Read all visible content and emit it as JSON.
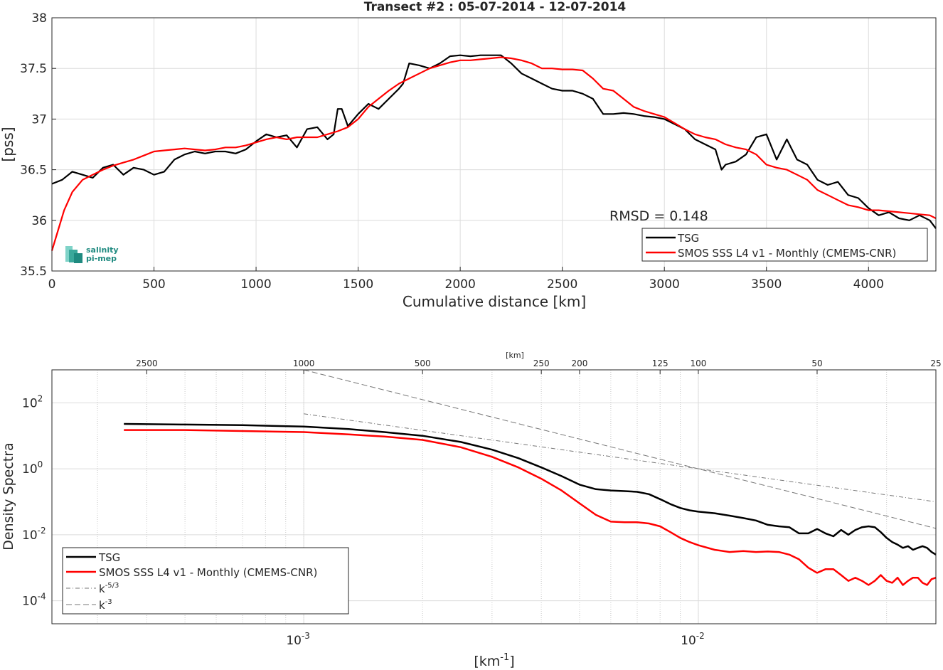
{
  "chart_data": [
    {
      "type": "line",
      "title": "Transect #2 : 05-07-2014 - 12-07-2014",
      "xlabel": "Cumulative distance [km]",
      "ylabel": "[pss]",
      "xlim": [
        0,
        4330
      ],
      "ylim": [
        35.5,
        38
      ],
      "xticks": [
        "0",
        "500",
        "1000",
        "1500",
        "2000",
        "2500",
        "3000",
        "3500",
        "4000"
      ],
      "yticks": [
        "35.5",
        "36",
        "36.5",
        "37",
        "37.5",
        "38"
      ],
      "grid": true,
      "legend_position": "bottom-right",
      "annotation": "RMSD = 0.148",
      "logo": {
        "line1": "salinity",
        "line2": "pi-mep"
      },
      "series": [
        {
          "name": "TSG",
          "color": "#000000",
          "x": [
            0,
            50,
            100,
            150,
            200,
            250,
            300,
            350,
            400,
            450,
            500,
            550,
            600,
            650,
            700,
            750,
            800,
            850,
            900,
            950,
            1000,
            1050,
            1100,
            1150,
            1200,
            1250,
            1300,
            1350,
            1380,
            1400,
            1420,
            1450,
            1500,
            1550,
            1600,
            1650,
            1700,
            1720,
            1750,
            1800,
            1850,
            1900,
            1950,
            2000,
            2050,
            2100,
            2150,
            2200,
            2250,
            2300,
            2350,
            2400,
            2450,
            2500,
            2550,
            2600,
            2650,
            2700,
            2750,
            2800,
            2850,
            2900,
            2950,
            3000,
            3050,
            3100,
            3150,
            3200,
            3250,
            3280,
            3300,
            3350,
            3400,
            3450,
            3500,
            3550,
            3600,
            3650,
            3700,
            3750,
            3800,
            3850,
            3900,
            3950,
            4000,
            4050,
            4100,
            4150,
            4200,
            4250,
            4300,
            4330
          ],
          "y": [
            36.36,
            36.4,
            36.48,
            36.45,
            36.42,
            36.52,
            36.55,
            36.45,
            36.52,
            36.5,
            36.45,
            36.48,
            36.6,
            36.65,
            36.68,
            36.66,
            36.68,
            36.68,
            36.66,
            36.7,
            36.78,
            36.85,
            36.82,
            36.84,
            36.72,
            36.9,
            36.92,
            36.8,
            36.85,
            37.1,
            37.1,
            36.93,
            37.05,
            37.15,
            37.1,
            37.2,
            37.3,
            37.35,
            37.55,
            37.53,
            37.5,
            37.55,
            37.62,
            37.63,
            37.62,
            37.63,
            37.63,
            37.63,
            37.55,
            37.45,
            37.4,
            37.35,
            37.3,
            37.28,
            37.28,
            37.25,
            37.2,
            37.05,
            37.05,
            37.06,
            37.05,
            37.03,
            37.02,
            37.0,
            36.95,
            36.9,
            36.8,
            36.75,
            36.7,
            36.5,
            36.55,
            36.58,
            36.65,
            36.82,
            36.85,
            36.6,
            36.8,
            36.6,
            36.55,
            36.4,
            36.35,
            36.38,
            36.25,
            36.22,
            36.12,
            36.05,
            36.08,
            36.02,
            36.0,
            36.05,
            36.0,
            35.92
          ]
        },
        {
          "name": "SMOS SSS L4 v1 - Monthly (CMEMS-CNR)",
          "color": "#ff0000",
          "x": [
            0,
            30,
            60,
            100,
            150,
            200,
            250,
            300,
            350,
            400,
            450,
            500,
            550,
            600,
            650,
            700,
            750,
            800,
            850,
            900,
            950,
            1000,
            1050,
            1100,
            1150,
            1200,
            1250,
            1300,
            1350,
            1400,
            1450,
            1500,
            1550,
            1600,
            1650,
            1700,
            1750,
            1800,
            1850,
            1900,
            1950,
            2000,
            2050,
            2100,
            2150,
            2200,
            2250,
            2300,
            2350,
            2400,
            2450,
            2500,
            2550,
            2600,
            2650,
            2700,
            2750,
            2800,
            2850,
            2900,
            2950,
            3000,
            3050,
            3100,
            3150,
            3200,
            3250,
            3300,
            3350,
            3400,
            3450,
            3500,
            3550,
            3600,
            3650,
            3700,
            3750,
            3800,
            3850,
            3900,
            3950,
            4000,
            4050,
            4100,
            4150,
            4200,
            4250,
            4300,
            4330
          ],
          "y": [
            35.7,
            35.9,
            36.1,
            36.28,
            36.4,
            36.45,
            36.5,
            36.54,
            36.57,
            36.6,
            36.64,
            36.68,
            36.69,
            36.7,
            36.71,
            36.7,
            36.69,
            36.7,
            36.72,
            36.72,
            36.74,
            36.77,
            36.8,
            36.82,
            36.8,
            36.82,
            36.82,
            36.82,
            36.85,
            36.88,
            36.92,
            37.0,
            37.12,
            37.2,
            37.28,
            37.35,
            37.4,
            37.45,
            37.5,
            37.53,
            37.56,
            37.58,
            37.58,
            37.59,
            37.6,
            37.61,
            37.6,
            37.58,
            37.55,
            37.5,
            37.5,
            37.49,
            37.49,
            37.48,
            37.4,
            37.3,
            37.28,
            37.2,
            37.12,
            37.08,
            37.05,
            37.02,
            36.96,
            36.9,
            36.85,
            36.82,
            36.8,
            36.75,
            36.72,
            36.7,
            36.65,
            36.55,
            36.52,
            36.5,
            36.45,
            36.4,
            36.3,
            36.25,
            36.2,
            36.15,
            36.13,
            36.1,
            36.1,
            36.09,
            36.08,
            36.07,
            36.06,
            36.05,
            36.02
          ]
        }
      ]
    },
    {
      "type": "line",
      "xscale": "log",
      "yscale": "log",
      "xlabel": "[km",
      "xlabel_sup": "-1",
      "xlabel_end": "]",
      "ylabel": "Density Spectra",
      "top_axis_label": "[km]",
      "top_ticks": [
        "2500",
        "1000",
        "500",
        "250",
        "200",
        "125",
        "100",
        "50",
        "25"
      ],
      "xlim": [
        0.00023,
        0.04
      ],
      "ylim": [
        2e-05,
        1000
      ],
      "xticks_major": [
        {
          "base": "10",
          "exp": "-3"
        },
        {
          "base": "10",
          "exp": "-2"
        }
      ],
      "yticks": [
        {
          "base": "10",
          "exp": "2"
        },
        {
          "base": "10",
          "exp": "0"
        },
        {
          "base": "10",
          "exp": "-2"
        },
        {
          "base": "10",
          "exp": "-4"
        }
      ],
      "grid": true,
      "legend_position": "bottom-left",
      "series": [
        {
          "name": "TSG",
          "color": "#000000",
          "x": [
            0.00035,
            0.0005,
            0.0007,
            0.001,
            0.0013,
            0.0016,
            0.002,
            0.0025,
            0.003,
            0.0035,
            0.004,
            0.0045,
            0.005,
            0.0055,
            0.006,
            0.0065,
            0.007,
            0.0075,
            0.008,
            0.0085,
            0.009,
            0.0095,
            0.01,
            0.011,
            0.012,
            0.013,
            0.014,
            0.015,
            0.016,
            0.017,
            0.018,
            0.019,
            0.02,
            0.021,
            0.022,
            0.023,
            0.024,
            0.025,
            0.026,
            0.027,
            0.028,
            0.029,
            0.03,
            0.031,
            0.032,
            0.033,
            0.034,
            0.035,
            0.036,
            0.037,
            0.038,
            0.039,
            0.04
          ],
          "y": [
            23,
            22,
            21,
            19,
            16,
            13,
            10,
            6.5,
            3.8,
            2.1,
            1.1,
            0.6,
            0.33,
            0.24,
            0.22,
            0.21,
            0.2,
            0.17,
            0.12,
            0.085,
            0.065,
            0.055,
            0.05,
            0.045,
            0.038,
            0.032,
            0.027,
            0.02,
            0.018,
            0.017,
            0.011,
            0.011,
            0.015,
            0.011,
            0.009,
            0.014,
            0.01,
            0.014,
            0.017,
            0.018,
            0.017,
            0.012,
            0.008,
            0.006,
            0.005,
            0.004,
            0.0045,
            0.0035,
            0.004,
            0.0045,
            0.004,
            0.003,
            0.0025
          ]
        },
        {
          "name": "SMOS SSS L4 v1 - Monthly (CMEMS-CNR)",
          "color": "#ff0000",
          "x": [
            0.00035,
            0.0005,
            0.0007,
            0.001,
            0.0013,
            0.0016,
            0.002,
            0.0025,
            0.003,
            0.0035,
            0.004,
            0.0045,
            0.005,
            0.0055,
            0.006,
            0.0065,
            0.007,
            0.0075,
            0.008,
            0.0085,
            0.009,
            0.0095,
            0.01,
            0.011,
            0.012,
            0.013,
            0.014,
            0.015,
            0.016,
            0.017,
            0.018,
            0.019,
            0.02,
            0.021,
            0.022,
            0.023,
            0.024,
            0.025,
            0.026,
            0.027,
            0.028,
            0.029,
            0.03,
            0.031,
            0.032,
            0.033,
            0.034,
            0.035,
            0.036,
            0.037,
            0.038,
            0.039,
            0.04
          ],
          "y": [
            15,
            15,
            14,
            13,
            11,
            9.5,
            7.5,
            4.5,
            2.3,
            1.1,
            0.5,
            0.22,
            0.09,
            0.04,
            0.025,
            0.024,
            0.024,
            0.022,
            0.018,
            0.012,
            0.008,
            0.006,
            0.0048,
            0.0035,
            0.003,
            0.0032,
            0.003,
            0.0031,
            0.003,
            0.0025,
            0.0018,
            0.001,
            0.0007,
            0.0009,
            0.0009,
            0.0006,
            0.0004,
            0.0005,
            0.0004,
            0.0003,
            0.0004,
            0.0006,
            0.0004,
            0.00035,
            0.0005,
            0.0003,
            0.0004,
            0.0005,
            0.0005,
            0.00035,
            0.0003,
            0.00045,
            0.0005
          ]
        },
        {
          "name": "k",
          "name_sup": "-5/3",
          "color": "#777777",
          "dash": "dashdot",
          "x": [
            0.001,
            0.04
          ],
          "y": [
            46.4,
            0.0997
          ]
        },
        {
          "name": "k",
          "name_sup": "-3",
          "color": "#777777",
          "dash": "dashed",
          "x": [
            0.001,
            0.04
          ],
          "y": [
            1000,
            0.0156
          ]
        }
      ]
    }
  ]
}
